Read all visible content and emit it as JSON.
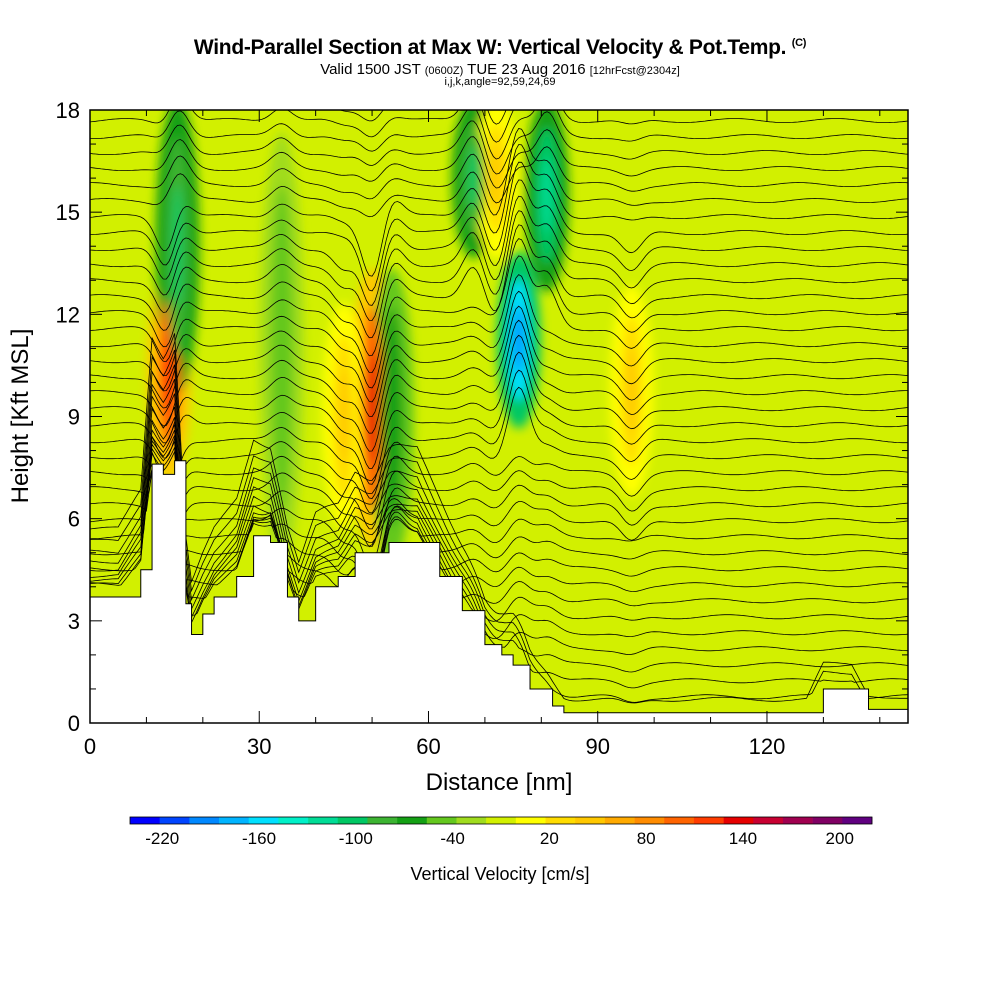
{
  "title": {
    "main": "Wind-Parallel Section at Max W: Vertical Velocity & Pot.Temp.",
    "copyright": "(C)",
    "valid_prefix": "Valid 1500 JST",
    "valid_utc": "(0600Z)",
    "valid_date": "TUE 23 Aug 2016",
    "forecast": "[12hrFcst@2304z]",
    "indices": "i,j,k,angle=92,59,24,69"
  },
  "chart_data": {
    "type": "heatmap",
    "xlabel": "Distance [nm]",
    "ylabel": "Height [Kft MSL]",
    "xlim": [
      0,
      145
    ],
    "ylim": [
      0,
      18
    ],
    "x_ticks": [
      0,
      30,
      60,
      90,
      120
    ],
    "y_ticks": [
      0,
      3,
      6,
      9,
      12,
      15,
      18
    ],
    "colorbar": {
      "label": "Vertical Velocity [cm/s]",
      "tick_labels": [
        "-220",
        "-160",
        "-100",
        "-40",
        "20",
        "80",
        "140",
        "200"
      ],
      "range": [
        -240,
        220
      ],
      "bin_width": 20,
      "colors": [
        "#0000ff",
        "#0044ff",
        "#0088ff",
        "#00b4ff",
        "#00e0ff",
        "#00f0c8",
        "#00dc96",
        "#00c864",
        "#3cb432",
        "#14a014",
        "#64c81e",
        "#a0dc1e",
        "#d2f000",
        "#ffff00",
        "#ffdc00",
        "#ffc800",
        "#ffaa00",
        "#ff8c00",
        "#ff6400",
        "#ff3c00",
        "#e60000",
        "#c80032",
        "#a00050",
        "#800064",
        "#600080"
      ]
    },
    "vertical_velocity_features": [
      {
        "x": 14,
        "y_range": [
          7.5,
          13
        ],
        "peak": 150
      },
      {
        "x": 15.5,
        "y_range": [
          10,
          18
        ],
        "peak": -100
      },
      {
        "x": 50,
        "y_range": [
          5.5,
          13
        ],
        "peak": 170
      },
      {
        "x": 53.5,
        "y_range": [
          5,
          13
        ],
        "peak": -60
      },
      {
        "x": 76,
        "y_range": [
          9,
          13.5
        ],
        "peak": -200
      },
      {
        "x": 81,
        "y_range": [
          13,
          18
        ],
        "peak": -110
      },
      {
        "x": 96,
        "y_range": [
          7,
          12.5
        ],
        "peak": 60
      },
      {
        "x": 45,
        "y_range": [
          6,
          12
        ],
        "peak": 60
      },
      {
        "x": 34,
        "y_range": [
          5,
          17
        ],
        "peak": -40
      },
      {
        "x": 68,
        "y_range": [
          14,
          18
        ],
        "peak": -90
      },
      {
        "x": 72,
        "y_range": [
          14,
          18
        ],
        "peak": 70
      }
    ],
    "terrain_kft": [
      {
        "x": 0,
        "h": 3.7
      },
      {
        "x": 5,
        "h": 3.7
      },
      {
        "x": 9,
        "h": 4.5
      },
      {
        "x": 11,
        "h": 7.6
      },
      {
        "x": 13,
        "h": 7.3
      },
      {
        "x": 15,
        "h": 7.7
      },
      {
        "x": 17,
        "h": 3.5
      },
      {
        "x": 18,
        "h": 2.6
      },
      {
        "x": 20,
        "h": 3.2
      },
      {
        "x": 22,
        "h": 3.7
      },
      {
        "x": 26,
        "h": 4.3
      },
      {
        "x": 29,
        "h": 5.5
      },
      {
        "x": 32,
        "h": 5.3
      },
      {
        "x": 35,
        "h": 3.7
      },
      {
        "x": 37,
        "h": 3.0
      },
      {
        "x": 40,
        "h": 4.0
      },
      {
        "x": 44,
        "h": 4.3
      },
      {
        "x": 47,
        "h": 5.0
      },
      {
        "x": 50,
        "h": 5.0
      },
      {
        "x": 53,
        "h": 5.3
      },
      {
        "x": 58,
        "h": 5.3
      },
      {
        "x": 62,
        "h": 4.3
      },
      {
        "x": 66,
        "h": 3.3
      },
      {
        "x": 70,
        "h": 2.3
      },
      {
        "x": 73,
        "h": 2.0
      },
      {
        "x": 75,
        "h": 1.7
      },
      {
        "x": 78,
        "h": 1.0
      },
      {
        "x": 82,
        "h": 0.5
      },
      {
        "x": 84,
        "h": 0.3
      },
      {
        "x": 127,
        "h": 0.3
      },
      {
        "x": 130,
        "h": 1.0
      },
      {
        "x": 135,
        "h": 1.0
      },
      {
        "x": 138,
        "h": 0.4
      },
      {
        "x": 145,
        "h": 0.3
      }
    ]
  }
}
